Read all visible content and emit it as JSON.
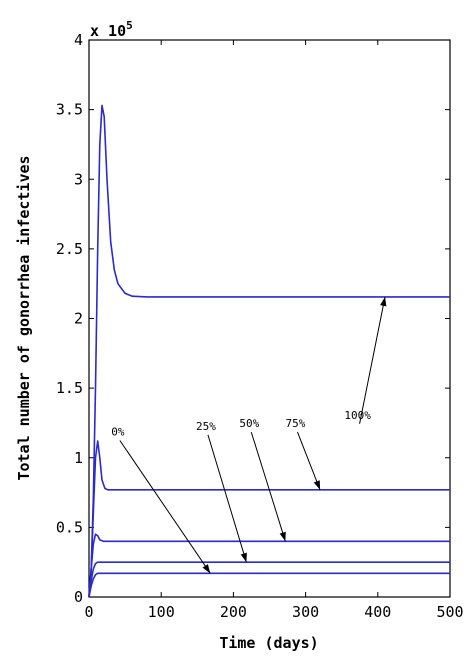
{
  "chart_data": {
    "type": "line",
    "title": "",
    "xlabel": "Time (days)",
    "ylabel": "Total number of gonorrhea infectives",
    "y_exponent_label": "x 10",
    "y_exponent_power": "5",
    "xlim": [
      0,
      500
    ],
    "ylim": [
      0,
      4
    ],
    "xticks": [
      0,
      100,
      200,
      300,
      400,
      500
    ],
    "xtick_labels": [
      "0",
      "100",
      "200",
      "300",
      "400",
      "500"
    ],
    "yticks": [
      0,
      0.5,
      1,
      1.5,
      2,
      2.5,
      3,
      3.5,
      4
    ],
    "ytick_labels": [
      "0",
      "0.5",
      "1",
      "1.5",
      "2",
      "2.5",
      "3",
      "3.5",
      "4"
    ],
    "grid": false,
    "legend": "none",
    "line_color": "#2a2ad0",
    "series": [
      {
        "name": "100%",
        "x": [
          0,
          3,
          6,
          9,
          12,
          15,
          18,
          21,
          25,
          30,
          35,
          40,
          50,
          60,
          80,
          100,
          500
        ],
        "values": [
          0,
          0.2,
          0.7,
          1.5,
          2.5,
          3.25,
          3.53,
          3.45,
          3.0,
          2.55,
          2.35,
          2.25,
          2.18,
          2.16,
          2.155,
          2.155,
          2.155
        ]
      },
      {
        "name": "75%",
        "x": [
          0,
          3,
          6,
          9,
          12,
          15,
          18,
          22,
          26,
          30,
          40,
          500
        ],
        "values": [
          0,
          0.2,
          0.6,
          1.0,
          1.12,
          1.0,
          0.84,
          0.78,
          0.77,
          0.77,
          0.77,
          0.77
        ]
      },
      {
        "name": "50%",
        "x": [
          0,
          3,
          6,
          9,
          12,
          15,
          20,
          25,
          500
        ],
        "values": [
          0,
          0.2,
          0.38,
          0.45,
          0.44,
          0.41,
          0.4,
          0.4,
          0.4
        ]
      },
      {
        "name": "25%",
        "x": [
          0,
          3,
          6,
          9,
          12,
          15,
          20,
          500
        ],
        "values": [
          0,
          0.12,
          0.2,
          0.24,
          0.25,
          0.25,
          0.25,
          0.25
        ]
      },
      {
        "name": "0%",
        "x": [
          0,
          3,
          6,
          9,
          12,
          15,
          20,
          500
        ],
        "values": [
          0,
          0.08,
          0.13,
          0.16,
          0.17,
          0.17,
          0.17,
          0.17
        ]
      }
    ],
    "annotations": [
      {
        "text": "0%",
        "text_x": 40,
        "text_y": 1.16,
        "arrow_to_x": 168,
        "arrow_to_y": 0.17
      },
      {
        "text": "25%",
        "text_x": 162,
        "text_y": 1.2,
        "arrow_to_x": 218,
        "arrow_to_y": 0.25
      },
      {
        "text": "50%",
        "text_x": 222,
        "text_y": 1.22,
        "arrow_to_x": 272,
        "arrow_to_y": 0.4
      },
      {
        "text": "75%",
        "text_x": 286,
        "text_y": 1.22,
        "arrow_to_x": 320,
        "arrow_to_y": 0.77
      },
      {
        "text": "100%",
        "text_x": 372,
        "text_y": 1.28,
        "arrow_to_x": 410,
        "arrow_to_y": 2.155
      }
    ]
  }
}
